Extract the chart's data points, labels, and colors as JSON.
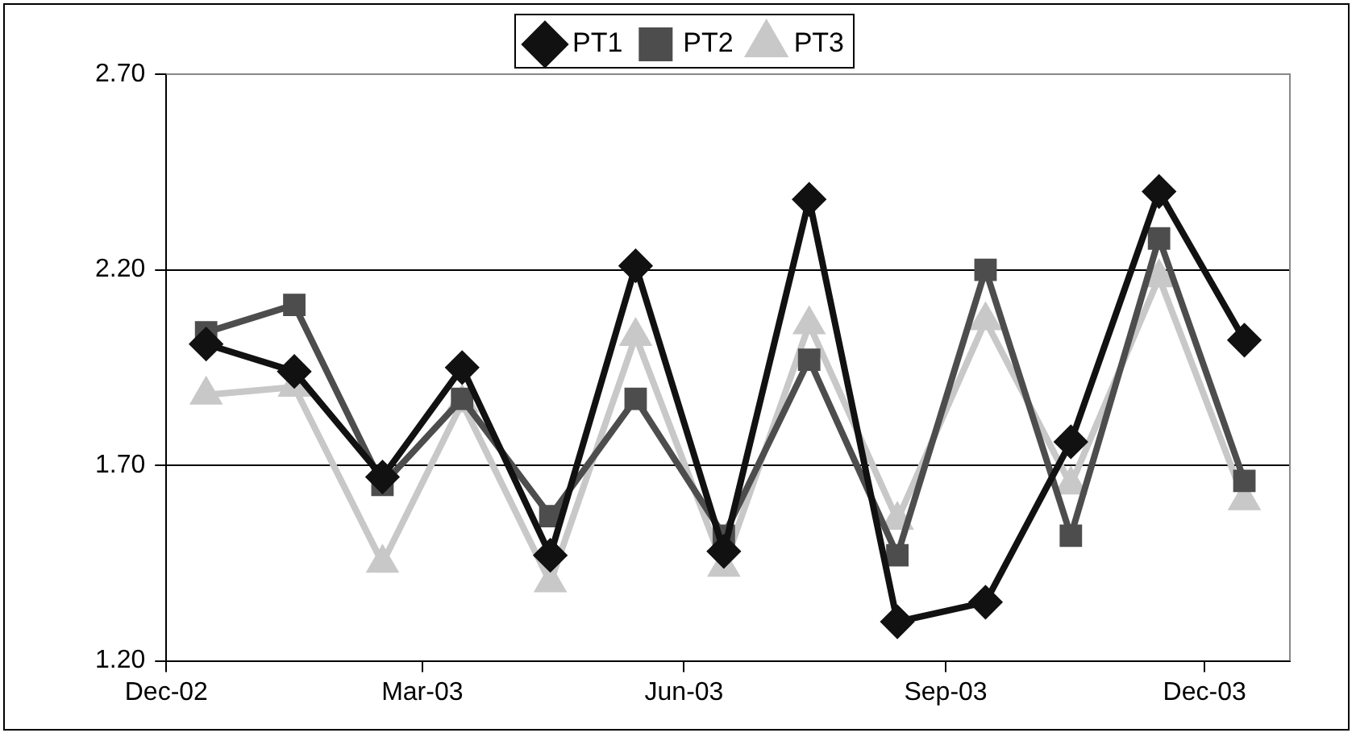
{
  "chart_data": {
    "type": "line",
    "x": [
      "2002-12-15",
      "2003-01-15",
      "2003-02-15",
      "2003-03-15",
      "2003-04-15",
      "2003-05-15",
      "2003-06-15",
      "2003-07-15",
      "2003-08-15",
      "2003-09-15",
      "2003-10-15",
      "2003-11-15",
      "2003-12-15"
    ],
    "series": [
      {
        "name": "PT1",
        "color": "#111111",
        "marker": "diamond",
        "values": [
          2.01,
          1.94,
          1.67,
          1.95,
          1.47,
          2.21,
          1.48,
          2.38,
          1.3,
          1.35,
          1.76,
          2.4,
          2.02
        ]
      },
      {
        "name": "PT2",
        "color": "#4d4d4d",
        "marker": "square",
        "values": [
          2.04,
          2.11,
          1.65,
          1.87,
          1.57,
          1.87,
          1.52,
          1.97,
          1.47,
          2.2,
          1.52,
          2.28,
          1.66
        ]
      },
      {
        "name": "PT3",
        "color": "#c8c8c8",
        "marker": "triangle",
        "values": [
          1.88,
          1.9,
          1.45,
          1.86,
          1.4,
          2.03,
          1.44,
          2.06,
          1.56,
          2.07,
          1.65,
          2.18,
          1.61
        ]
      }
    ],
    "xlim": [
      "2002-12-01",
      "2003-12-31"
    ],
    "xticks": [
      {
        "value": "2002-12-01",
        "label": "Dec-02"
      },
      {
        "value": "2003-03-01",
        "label": "Mar-03"
      },
      {
        "value": "2003-06-01",
        "label": "Jun-03"
      },
      {
        "value": "2003-09-01",
        "label": "Sep-03"
      },
      {
        "value": "2003-12-01",
        "label": "Dec-03"
      }
    ],
    "ylim": [
      1.2,
      2.7
    ],
    "yticks": [
      {
        "value": 1.2,
        "label": "1.20"
      },
      {
        "value": 1.7,
        "label": "1.70"
      },
      {
        "value": 2.2,
        "label": "2.20"
      },
      {
        "value": 2.7,
        "label": "2.70"
      }
    ],
    "grid": "y",
    "legend": "top",
    "line_style": "solid"
  }
}
